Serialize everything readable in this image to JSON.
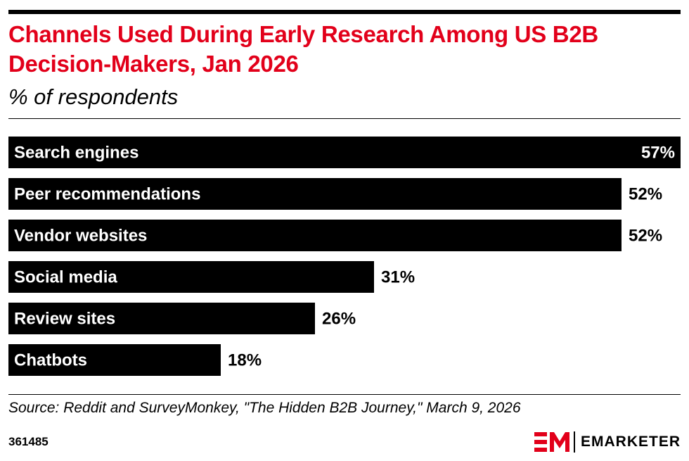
{
  "header": {
    "title": "Channels Used During Early Research Among US B2B Decision-Makers, Jan 2026",
    "subtitle": "% of respondents"
  },
  "chart_data": {
    "type": "bar",
    "orientation": "horizontal",
    "title": "Channels Used During Early Research Among US B2B Decision-Makers, Jan 2026",
    "subtitle": "% of respondents",
    "categories": [
      "Search engines",
      "Peer recommendations",
      "Vendor websites",
      "Social media",
      "Review sites",
      "Chatbots"
    ],
    "values": [
      57,
      52,
      52,
      31,
      26,
      18
    ],
    "value_labels": [
      "57%",
      "52%",
      "52%",
      "31%",
      "26%",
      "18%"
    ],
    "xlim": [
      0,
      57
    ],
    "grid": false,
    "legend": "none",
    "bar_color": "#000000",
    "label_color": "#ffffff"
  },
  "footer": {
    "source": "Source: Reddit and SurveyMonkey, \"The Hidden B2B Journey,\" March 9, 2026",
    "chart_id": "361485",
    "brand": "EMARKETER",
    "brand_mark": "EM"
  },
  "colors": {
    "title": "#e2001a",
    "brand_red": "#e2001a",
    "text": "#000000"
  }
}
